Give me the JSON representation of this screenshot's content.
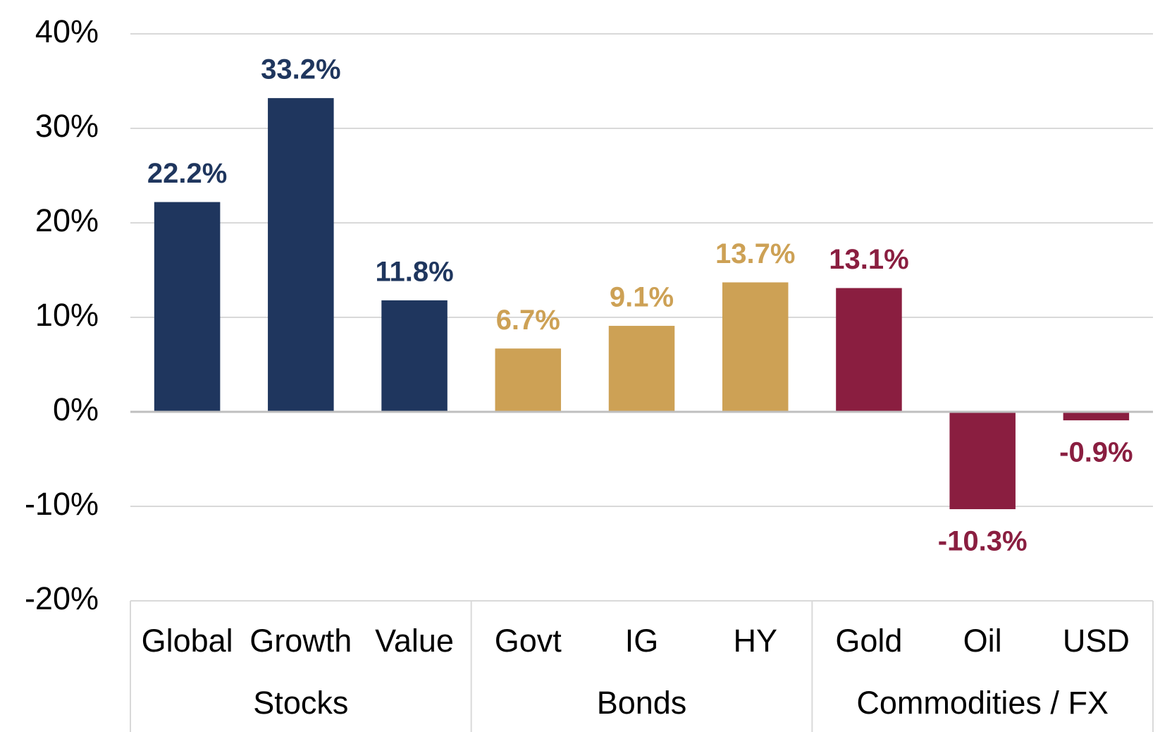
{
  "chart_data": {
    "type": "bar",
    "groups": [
      {
        "name": "Stocks",
        "color": "#1f365e",
        "categories": [
          "Global",
          "Growth",
          "Value"
        ],
        "values": [
          22.2,
          33.2,
          11.8
        ],
        "value_labels": [
          "22.2%",
          "33.2%",
          "11.8%"
        ]
      },
      {
        "name": "Bonds",
        "color": "#cda155",
        "categories": [
          "Govt",
          "IG",
          "HY"
        ],
        "values": [
          6.7,
          9.1,
          13.7
        ],
        "value_labels": [
          "6.7%",
          "9.1%",
          "13.7%"
        ]
      },
      {
        "name": "Commodities / FX",
        "color": "#8a1e40",
        "categories": [
          "Gold",
          "Oil",
          "USD"
        ],
        "values": [
          13.1,
          -10.3,
          -0.9
        ],
        "value_labels": [
          "13.1%",
          "-10.3%",
          "-0.9%"
        ]
      }
    ],
    "ylim": [
      -20,
      40
    ],
    "yticks": [
      {
        "value": -20,
        "label": "-20%"
      },
      {
        "value": -10,
        "label": "-10%"
      },
      {
        "value": 0,
        "label": "0%"
      },
      {
        "value": 10,
        "label": "10%"
      },
      {
        "value": 20,
        "label": "20%"
      },
      {
        "value": 30,
        "label": "30%"
      },
      {
        "value": 40,
        "label": "40%"
      }
    ],
    "grid": true
  }
}
